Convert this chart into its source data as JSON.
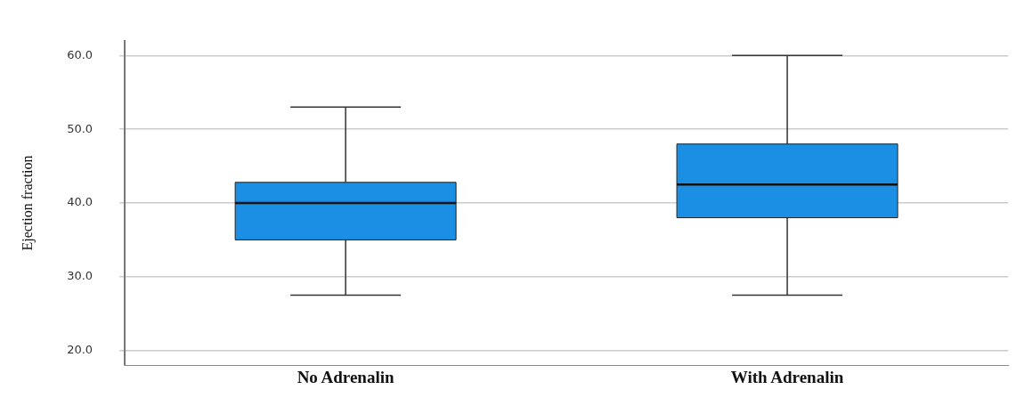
{
  "chart_data": {
    "type": "box",
    "ylabel": "Ejection fraction",
    "categories": [
      "No Adrenalin",
      "With Adrenalin"
    ],
    "boxes": [
      {
        "low": 27.5,
        "q1": 35,
        "median": 40,
        "q3": 42.8,
        "high": 53
      },
      {
        "low": 27.5,
        "q1": 38,
        "median": 42.5,
        "q3": 48,
        "high": 60
      }
    ],
    "color": "#1a8fe3",
    "ylim": [
      18,
      62
    ],
    "yticks": [
      {
        "value": 20,
        "label": "20.0"
      },
      {
        "value": 30,
        "label": "30.0"
      },
      {
        "value": 40,
        "label": "40.0"
      },
      {
        "value": 50,
        "label": "50.0"
      },
      {
        "value": 60,
        "label": "60.0"
      }
    ],
    "grid": "y"
  }
}
